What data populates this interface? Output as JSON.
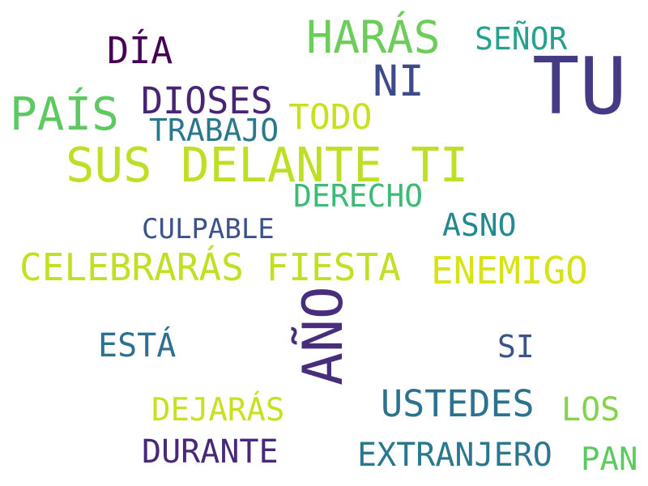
{
  "words": {
    "tu": {
      "text": "TU",
      "color": "#443b84"
    },
    "haras": {
      "text": "HARÁS",
      "color": "#6ccd5a"
    },
    "senor": {
      "text": "SEÑOR",
      "color": "#25a18e"
    },
    "dia": {
      "text": "DÍA",
      "color": "#440154"
    },
    "ni": {
      "text": "NI",
      "color": "#3e4a89"
    },
    "pais": {
      "text": "PAÍS",
      "color": "#5ec962"
    },
    "dioses": {
      "text": "DIOSES",
      "color": "#482475"
    },
    "todo": {
      "text": "TODO",
      "color": "#c8e020"
    },
    "trabajo": {
      "text": "TRABAJO",
      "color": "#2a788e"
    },
    "sus_delante_ti": {
      "text": "SUS DELANTE TI",
      "color": "#bddf26"
    },
    "derecho": {
      "text": "DERECHO",
      "color": "#3bbb75"
    },
    "asno": {
      "text": "ASNO",
      "color": "#23898e"
    },
    "culpable": {
      "text": "CULPABLE",
      "color": "#3b528b"
    },
    "celebraras_fiesta": {
      "text": "CELEBRARÁS FIESTA",
      "color": "#c2df23"
    },
    "enemigo": {
      "text": "ENEMIGO",
      "color": "#d8e219"
    },
    "ano": {
      "text": "AÑO",
      "color": "#472d7b"
    },
    "esta": {
      "text": "ESTÁ",
      "color": "#2c728e"
    },
    "si": {
      "text": "SI",
      "color": "#3b528b"
    },
    "ustedes": {
      "text": "USTEDES",
      "color": "#2c728e"
    },
    "dejaras": {
      "text": "DEJARÁS",
      "color": "#c8e020"
    },
    "los": {
      "text": "LOS",
      "color": "#84d44b"
    },
    "durante": {
      "text": "DURANTE",
      "color": "#482878"
    },
    "extranjero": {
      "text": "EXTRANJERO",
      "color": "#2a788e"
    },
    "pan": {
      "text": "PAN",
      "color": "#5ec962"
    }
  }
}
